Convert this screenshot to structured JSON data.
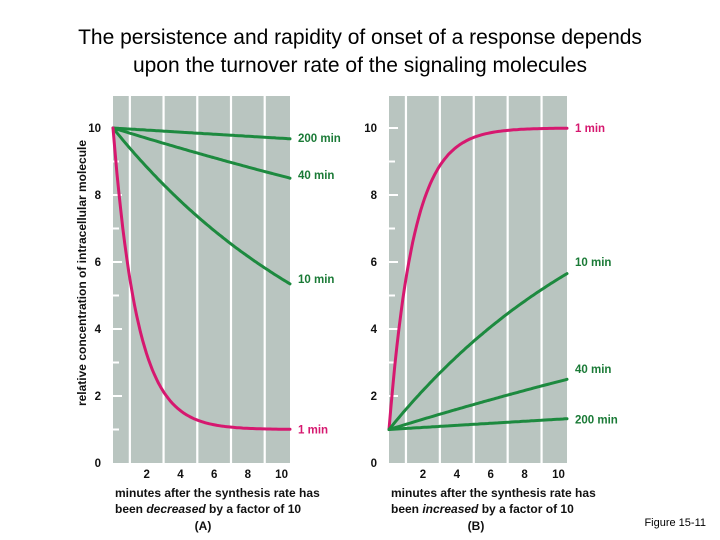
{
  "slide": {
    "title_line1": "The persistence and rapidity of onset of a response depends",
    "title_line2": "upon the turnover rate of the signaling molecules",
    "figure_caption": "Figure 15-11"
  },
  "colors": {
    "plot_bg": "#b9c5c0",
    "green": "#1d8a3f",
    "magenta": "#d6186f",
    "text_green": "#1a7a36"
  },
  "shared_ylabel": "relative concentration of intracellular molecule",
  "chart_data": [
    {
      "type": "line",
      "panel_label": "(A)",
      "xlabel_line1": "minutes after the synthesis rate has",
      "xlabel_line2_pre": "been ",
      "xlabel_line2_em": "decreased",
      "xlabel_line2_post": " by a factor of 10",
      "xlim": [
        0,
        10.5
      ],
      "ylim": [
        0,
        10
      ],
      "xticks": [
        2,
        4,
        6,
        8,
        10
      ],
      "yticks": [
        0,
        2,
        4,
        6,
        8,
        10
      ],
      "series": [
        {
          "name": "200 min",
          "color": "green",
          "x": [
            0,
            10.5
          ],
          "y": [
            10,
            9.7
          ],
          "mode": "decay",
          "start": 10,
          "end": 1,
          "halflife": 200
        },
        {
          "name": "40 min",
          "color": "green",
          "x": [
            0,
            10.5
          ],
          "y": [
            10,
            8.6
          ],
          "mode": "decay",
          "start": 10,
          "end": 1,
          "halflife": 40
        },
        {
          "name": "10 min",
          "color": "green",
          "x": [
            0,
            10.5
          ],
          "y": [
            10,
            5.5
          ],
          "mode": "decay",
          "start": 10,
          "end": 1,
          "halflife": 10
        },
        {
          "name": "1 min",
          "color": "magenta",
          "x": [
            0,
            10.5
          ],
          "y": [
            10,
            1.0
          ],
          "mode": "decay",
          "start": 10,
          "end": 1,
          "halflife": 1
        }
      ]
    },
    {
      "type": "line",
      "panel_label": "(B)",
      "xlabel_line1": "minutes after the synthesis rate has",
      "xlabel_line2_pre": "been ",
      "xlabel_line2_em": "increased",
      "xlabel_line2_post": " by a factor of 10",
      "xlim": [
        0,
        10.5
      ],
      "ylim": [
        0,
        10
      ],
      "xticks": [
        2,
        4,
        6,
        8,
        10
      ],
      "yticks": [
        0,
        2,
        4,
        6,
        8,
        10
      ],
      "series": [
        {
          "name": "1 min",
          "color": "magenta",
          "x": [
            0,
            10.5
          ],
          "y": [
            1,
            10.0
          ],
          "mode": "rise",
          "start": 1,
          "end": 10,
          "halflife": 1
        },
        {
          "name": "10 min",
          "color": "green",
          "x": [
            0,
            10.5
          ],
          "y": [
            1,
            6.0
          ],
          "mode": "rise",
          "start": 1,
          "end": 10,
          "halflife": 10
        },
        {
          "name": "40 min",
          "color": "green",
          "x": [
            0,
            10.5
          ],
          "y": [
            1,
            2.8
          ],
          "mode": "rise",
          "start": 1,
          "end": 10,
          "halflife": 40
        },
        {
          "name": "200 min",
          "color": "green",
          "x": [
            0,
            10.5
          ],
          "y": [
            1,
            1.3
          ],
          "mode": "rise",
          "start": 1,
          "end": 10,
          "halflife": 200
        }
      ]
    }
  ]
}
